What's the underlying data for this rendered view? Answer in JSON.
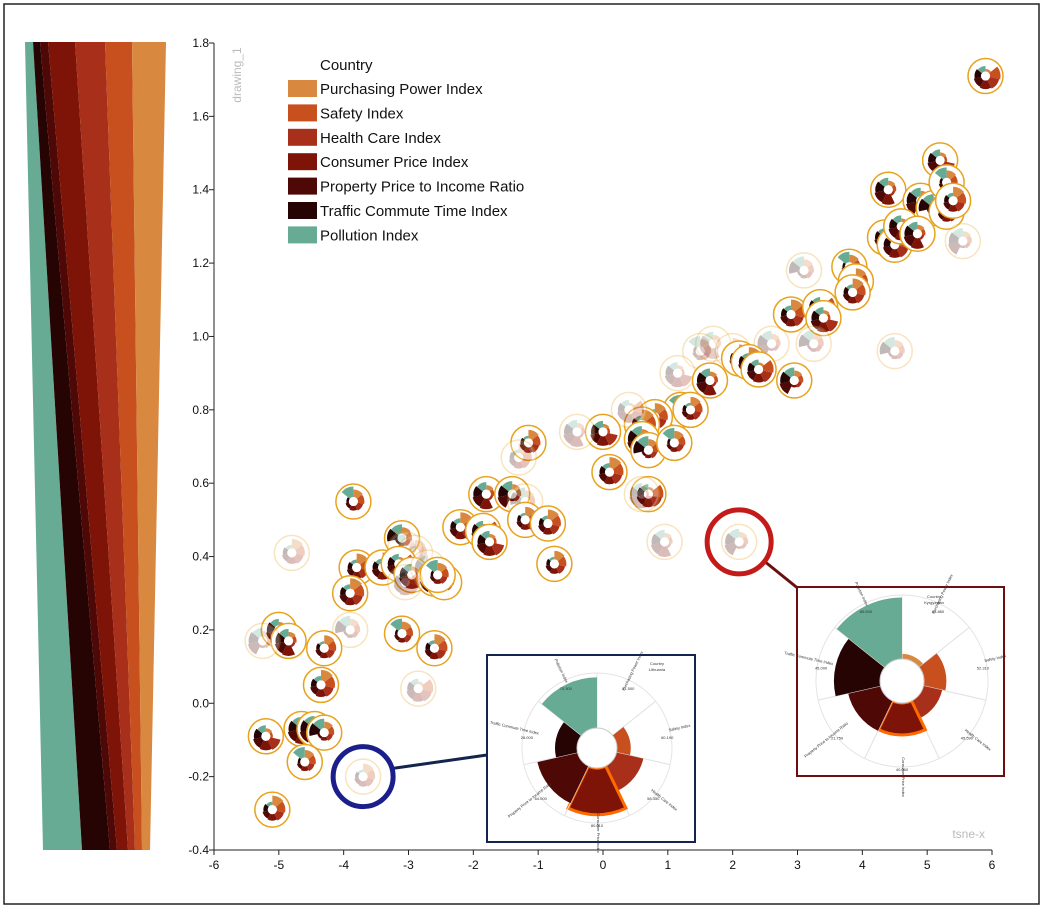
{
  "chart_data": {
    "type": "scatter",
    "marker": "radial-glyph",
    "xlabel": "tsne-x",
    "ylabel": "drawing_1",
    "xlim": [
      -6,
      6
    ],
    "ylim": [
      -0.4,
      1.8
    ],
    "xticks": [
      "-6",
      "-5",
      "-4",
      "-3",
      "-2",
      "-1",
      "0",
      "1",
      "2",
      "3",
      "4",
      "5",
      "6"
    ],
    "yticks": [
      "-0.4",
      "-0.2",
      "0.0",
      "0.2",
      "0.4",
      "0.6",
      "0.8",
      "1.0",
      "1.2",
      "1.4",
      "1.6",
      "1.8"
    ],
    "legend": {
      "title": "Country",
      "position": "top-left",
      "items": [
        {
          "label": "Purchasing Power Index",
          "color": "#d9883f"
        },
        {
          "label": "Safety Index",
          "color": "#c8501e"
        },
        {
          "label": "Health Care Index",
          "color": "#a8301a"
        },
        {
          "label": "Consumer Price Index",
          "color": "#7e1408"
        },
        {
          "label": "Property Price to Income Ratio",
          "color": "#4e0806"
        },
        {
          "label": "Traffic Commute Time Index",
          "color": "#260404"
        },
        {
          "label": "Pollution Index",
          "color": "#68ab94"
        }
      ]
    },
    "points": [
      {
        "x": 5.9,
        "y": 1.71,
        "f": 1
      },
      {
        "x": 5.2,
        "y": 1.48,
        "f": 1
      },
      {
        "x": 4.4,
        "y": 1.4,
        "f": 1
      },
      {
        "x": 4.9,
        "y": 1.37,
        "f": 1
      },
      {
        "x": 5.1,
        "y": 1.35,
        "f": 1
      },
      {
        "x": 5.3,
        "y": 1.42,
        "f": 1
      },
      {
        "x": 5.3,
        "y": 1.34,
        "f": 1
      },
      {
        "x": 5.4,
        "y": 1.37,
        "f": 1
      },
      {
        "x": 4.35,
        "y": 1.27,
        "f": 1
      },
      {
        "x": 4.5,
        "y": 1.25,
        "f": 1
      },
      {
        "x": 4.6,
        "y": 1.3,
        "f": 1
      },
      {
        "x": 4.85,
        "y": 1.28,
        "f": 1
      },
      {
        "x": 5.55,
        "y": 1.26,
        "f": 0
      },
      {
        "x": 3.1,
        "y": 1.18,
        "f": 0
      },
      {
        "x": 3.8,
        "y": 1.19,
        "f": 1
      },
      {
        "x": 3.9,
        "y": 1.15,
        "f": 1
      },
      {
        "x": 3.85,
        "y": 1.12,
        "f": 1
      },
      {
        "x": 2.9,
        "y": 1.06,
        "f": 1
      },
      {
        "x": 3.35,
        "y": 1.08,
        "f": 1
      },
      {
        "x": 3.4,
        "y": 1.05,
        "f": 1
      },
      {
        "x": 1.7,
        "y": 0.98,
        "f": 0
      },
      {
        "x": 2.6,
        "y": 0.98,
        "f": 0
      },
      {
        "x": 3.25,
        "y": 0.98,
        "f": 0
      },
      {
        "x": 1.5,
        "y": 0.96,
        "f": 0
      },
      {
        "x": 2.0,
        "y": 0.96,
        "f": 0
      },
      {
        "x": 2.1,
        "y": 0.94,
        "f": 1
      },
      {
        "x": 2.25,
        "y": 0.93,
        "f": 1
      },
      {
        "x": 2.4,
        "y": 0.91,
        "f": 1
      },
      {
        "x": 1.15,
        "y": 0.9,
        "f": 0
      },
      {
        "x": 1.65,
        "y": 0.88,
        "f": 1
      },
      {
        "x": 2.95,
        "y": 0.88,
        "f": 1
      },
      {
        "x": 4.5,
        "y": 0.96,
        "f": 0
      },
      {
        "x": 1.2,
        "y": 0.8,
        "f": 1
      },
      {
        "x": 1.35,
        "y": 0.8,
        "f": 1
      },
      {
        "x": 0.8,
        "y": 0.78,
        "f": 1
      },
      {
        "x": 0.6,
        "y": 0.76,
        "f": 1
      },
      {
        "x": 0.4,
        "y": 0.8,
        "f": 0
      },
      {
        "x": 0.0,
        "y": 0.74,
        "f": 1
      },
      {
        "x": -0.4,
        "y": 0.74,
        "f": 0
      },
      {
        "x": 0.6,
        "y": 0.72,
        "f": 1
      },
      {
        "x": 0.7,
        "y": 0.69,
        "f": 1
      },
      {
        "x": 1.1,
        "y": 0.71,
        "f": 1
      },
      {
        "x": -1.15,
        "y": 0.71,
        "f": 1
      },
      {
        "x": -1.3,
        "y": 0.67,
        "f": 0
      },
      {
        "x": 0.1,
        "y": 0.63,
        "f": 1
      },
      {
        "x": 0.7,
        "y": 0.57,
        "f": 1
      },
      {
        "x": 0.6,
        "y": 0.57,
        "f": 0
      },
      {
        "x": -1.8,
        "y": 0.57,
        "f": 1
      },
      {
        "x": -1.4,
        "y": 0.57,
        "f": 1
      },
      {
        "x": -1.2,
        "y": 0.55,
        "f": 0
      },
      {
        "x": -3.85,
        "y": 0.55,
        "f": 1
      },
      {
        "x": -1.2,
        "y": 0.5,
        "f": 1
      },
      {
        "x": -0.85,
        "y": 0.49,
        "f": 1
      },
      {
        "x": -2.2,
        "y": 0.48,
        "f": 1
      },
      {
        "x": -1.85,
        "y": 0.47,
        "f": 1
      },
      {
        "x": -1.75,
        "y": 0.44,
        "f": 1
      },
      {
        "x": 0.95,
        "y": 0.44,
        "f": 0
      },
      {
        "x": 2.1,
        "y": 0.44,
        "f": 0
      },
      {
        "x": -3.1,
        "y": 0.45,
        "f": 1
      },
      {
        "x": -3.05,
        "y": 0.42,
        "f": 0
      },
      {
        "x": -2.9,
        "y": 0.41,
        "f": 0
      },
      {
        "x": -3.8,
        "y": 0.37,
        "f": 1
      },
      {
        "x": -3.4,
        "y": 0.37,
        "f": 1
      },
      {
        "x": -3.15,
        "y": 0.38,
        "f": 1
      },
      {
        "x": -2.95,
        "y": 0.35,
        "f": 1
      },
      {
        "x": -2.7,
        "y": 0.37,
        "f": 0
      },
      {
        "x": -2.6,
        "y": 0.34,
        "f": 1
      },
      {
        "x": -2.45,
        "y": 0.33,
        "f": 1
      },
      {
        "x": -2.55,
        "y": 0.35,
        "f": 1
      },
      {
        "x": -0.75,
        "y": 0.38,
        "f": 1
      },
      {
        "x": -4.8,
        "y": 0.41,
        "f": 0
      },
      {
        "x": -3.9,
        "y": 0.3,
        "f": 1
      },
      {
        "x": -3.05,
        "y": 0.33,
        "f": 0
      },
      {
        "x": -5.0,
        "y": 0.2,
        "f": 1
      },
      {
        "x": -4.85,
        "y": 0.17,
        "f": 1
      },
      {
        "x": -5.25,
        "y": 0.17,
        "f": 0
      },
      {
        "x": -3.9,
        "y": 0.2,
        "f": 0
      },
      {
        "x": -3.1,
        "y": 0.19,
        "f": 1
      },
      {
        "x": -4.3,
        "y": 0.15,
        "f": 1
      },
      {
        "x": -2.6,
        "y": 0.15,
        "f": 1
      },
      {
        "x": -4.35,
        "y": 0.05,
        "f": 1
      },
      {
        "x": -2.85,
        "y": 0.04,
        "f": 0
      },
      {
        "x": -5.2,
        "y": -0.09,
        "f": 1
      },
      {
        "x": -4.65,
        "y": -0.07,
        "f": 1
      },
      {
        "x": -4.45,
        "y": -0.07,
        "f": 1
      },
      {
        "x": -4.3,
        "y": -0.08,
        "f": 1
      },
      {
        "x": -4.6,
        "y": -0.16,
        "f": 1
      },
      {
        "x": -3.7,
        "y": -0.2,
        "f": 0
      },
      {
        "x": -5.1,
        "y": -0.29,
        "f": 1
      }
    ],
    "highlights": [
      {
        "x": -3.7,
        "y": -0.2,
        "color": "#1b1f8c"
      },
      {
        "x": 2.1,
        "y": 0.44,
        "color": "#c41a1a"
      }
    ],
    "insets": [
      {
        "ring_color": "#1b1f8c",
        "title": "Country",
        "subtitle": "Lithuania",
        "labels": [
          "Purchasing Power Index",
          "Safety Index",
          "Health Care Index",
          "Consumer Price Index",
          "Property Price to Income Ratio",
          "Traffic Commute Time Index",
          "Pollution Index"
        ],
        "values": [
          "31.500",
          "60.190",
          "58.350",
          "80.010",
          "64.000",
          "28.000",
          "70.300"
        ],
        "radii": [
          0.0,
          0.25,
          0.5,
          0.85,
          0.75,
          0.4,
          0.92
        ],
        "highlight_index": 3
      },
      {
        "ring_color": "#6b1010",
        "title": "Country",
        "subtitle": "Kyrgyzstan",
        "labels": [
          "Purchasing Power Index",
          "Safety Index",
          "Health Care Index",
          "Consumer Price Index",
          "Property Price to Income Ratio",
          "Traffic Commute Time Index",
          "Pollution Index"
        ],
        "values": [
          "18.880",
          "52.310",
          "45.590",
          "40.060",
          "21.750",
          "45.000",
          "85.500"
        ],
        "radii": [
          0.08,
          0.35,
          0.3,
          0.5,
          0.52,
          0.72,
          0.96
        ],
        "highlight_index": 3
      }
    ]
  }
}
